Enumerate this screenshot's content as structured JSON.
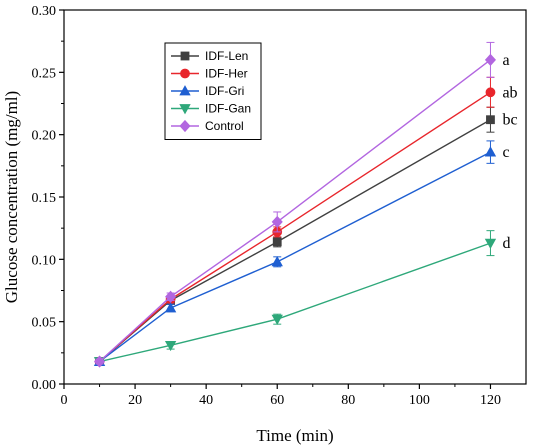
{
  "chart_data": {
    "type": "line",
    "xlabel": "Time (min)",
    "ylabel": "Glucose concentration (mg/ml)",
    "xlim": [
      0,
      130
    ],
    "ylim": [
      0,
      0.3
    ],
    "xticks": [
      0,
      20,
      40,
      60,
      80,
      100,
      120
    ],
    "yticks": [
      "0.00",
      "0.05",
      "0.10",
      "0.15",
      "0.20",
      "0.25",
      "0.30"
    ],
    "grid": false,
    "legend_position": "top-left",
    "x": [
      10,
      30,
      60,
      120
    ],
    "series": [
      {
        "name": "IDF-Len",
        "color": "#404040",
        "marker": "square",
        "values": [
          0.018,
          0.067,
          0.114,
          0.212
        ],
        "errors": [
          0.002,
          0.003,
          0.004,
          0.01
        ],
        "significance": "bc"
      },
      {
        "name": "IDF-Her",
        "color": "#e8262c",
        "marker": "circle",
        "values": [
          0.018,
          0.068,
          0.122,
          0.234
        ],
        "errors": [
          0.002,
          0.003,
          0.004,
          0.012
        ],
        "significance": "ab"
      },
      {
        "name": "IDF-Gri",
        "color": "#1f5fd1",
        "marker": "triangle-up",
        "values": [
          0.018,
          0.061,
          0.098,
          0.186
        ],
        "errors": [
          0.002,
          0.003,
          0.004,
          0.009
        ],
        "significance": "c"
      },
      {
        "name": "IDF-Gan",
        "color": "#2ea87a",
        "marker": "triangle-down",
        "values": [
          0.018,
          0.031,
          0.052,
          0.113
        ],
        "errors": [
          0.002,
          0.003,
          0.004,
          0.01
        ],
        "significance": "d"
      },
      {
        "name": "Control",
        "color": "#b266e0",
        "marker": "diamond",
        "values": [
          0.018,
          0.07,
          0.13,
          0.26
        ],
        "errors": [
          0.002,
          0.003,
          0.008,
          0.014
        ],
        "significance": "a"
      }
    ]
  }
}
